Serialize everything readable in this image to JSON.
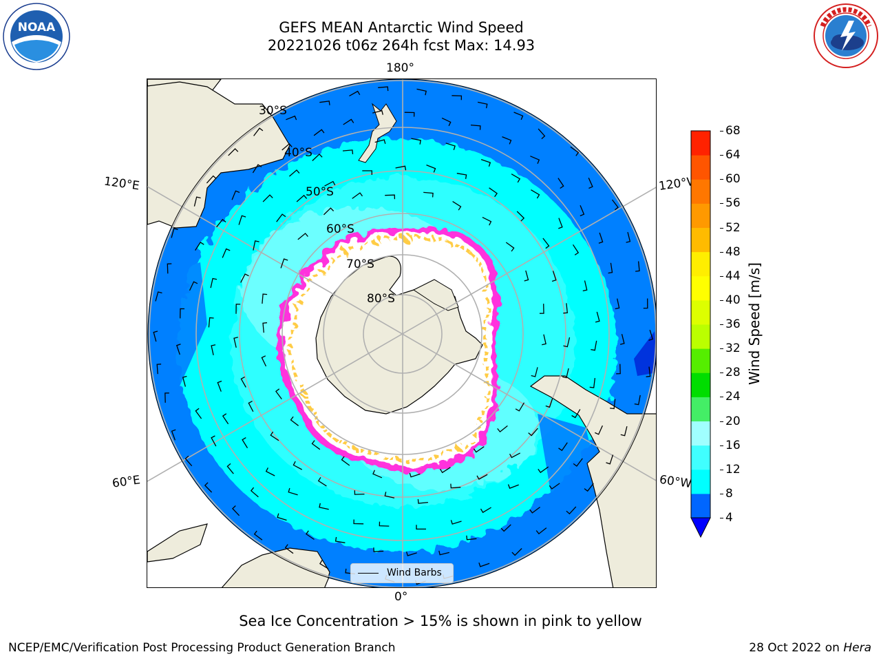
{
  "header": {
    "title_line1": "GEFS MEAN Antarctic Wind Speed",
    "title_line2": "20221026 t06z 264h fcst   Max: 14.93"
  },
  "logos": {
    "noaa": {
      "text": "NOAA",
      "ring_text": "NATIONAL OCEANIC AND ATMOSPHERIC ADMINISTRATION · U.S. DEPARTMENT OF COMMERCE"
    },
    "nws": {
      "ring_text": "NATIONAL WEATHER SERVICE"
    }
  },
  "map": {
    "projection": "south-polar-stereographic",
    "longitude_labels": {
      "top": "180°",
      "bottom": "0°",
      "left_upper": "120°E",
      "left_lower": "60°E",
      "right_upper": "120°W",
      "right_lower": "60°W"
    },
    "latitude_labels": [
      "30°S",
      "40°S",
      "50°S",
      "60°S",
      "70°S",
      "80°S"
    ],
    "legend_label": "Wind Barbs"
  },
  "colorbar": {
    "label": "Wind Speed [m/s]",
    "ticks": [
      "4",
      "8",
      "12",
      "16",
      "20",
      "24",
      "28",
      "32",
      "36",
      "40",
      "44",
      "48",
      "52",
      "56",
      "60",
      "64",
      "68"
    ],
    "colors": [
      "#0066ff",
      "#00ffff",
      "#40ffff",
      "#a0ffff",
      "#44ee66",
      "#00dd00",
      "#55ee00",
      "#bbff00",
      "#ddff00",
      "#ffff00",
      "#ffee00",
      "#ffbb00",
      "#ff9900",
      "#ff7700",
      "#ff5500",
      "#ff2200"
    ],
    "under_color": "#0000ff",
    "land_color": "#eeecdc",
    "ocean_low_color": "#0080ff",
    "ice_colors": [
      "#ff33dd",
      "#ffcc44"
    ]
  },
  "note": "Sea Ice Concentration > 15% is shown in pink to yellow",
  "footer": {
    "left": "NCEP/EMC/Verification Post Processing Product Generation Branch",
    "right_date": "28 Oct 2022 on",
    "right_host": "Hera"
  }
}
